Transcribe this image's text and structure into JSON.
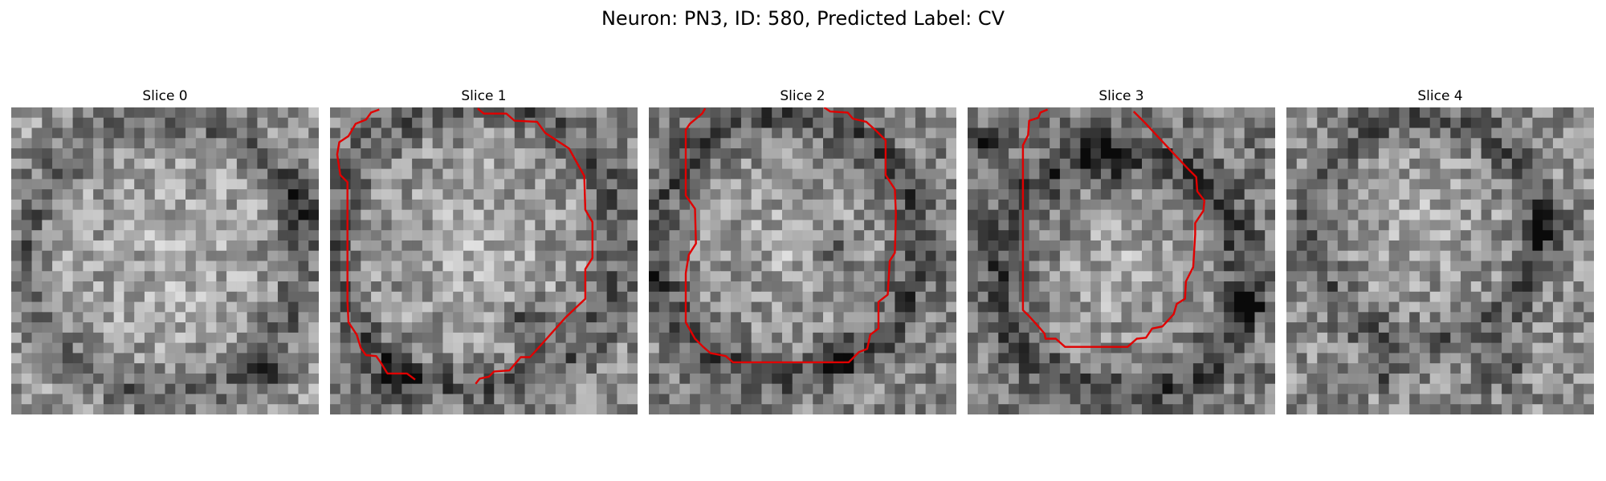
{
  "figure": {
    "title": "Neuron: PN3, ID: 580, Predicted Label: CV"
  },
  "panels": [
    {
      "title": "Slice 0",
      "seed": 11,
      "has_contour": false,
      "grid": 30
    },
    {
      "title": "Slice 1",
      "seed": 23,
      "has_contour": true,
      "grid": 30
    },
    {
      "title": "Slice 2",
      "seed": 37,
      "has_contour": true,
      "grid": 30
    },
    {
      "title": "Slice 3",
      "seed": 51,
      "has_contour": true,
      "grid": 30
    },
    {
      "title": "Slice 4",
      "seed": 67,
      "has_contour": false,
      "grid": 30
    }
  ],
  "style": {
    "contour_color": "#e00000"
  }
}
